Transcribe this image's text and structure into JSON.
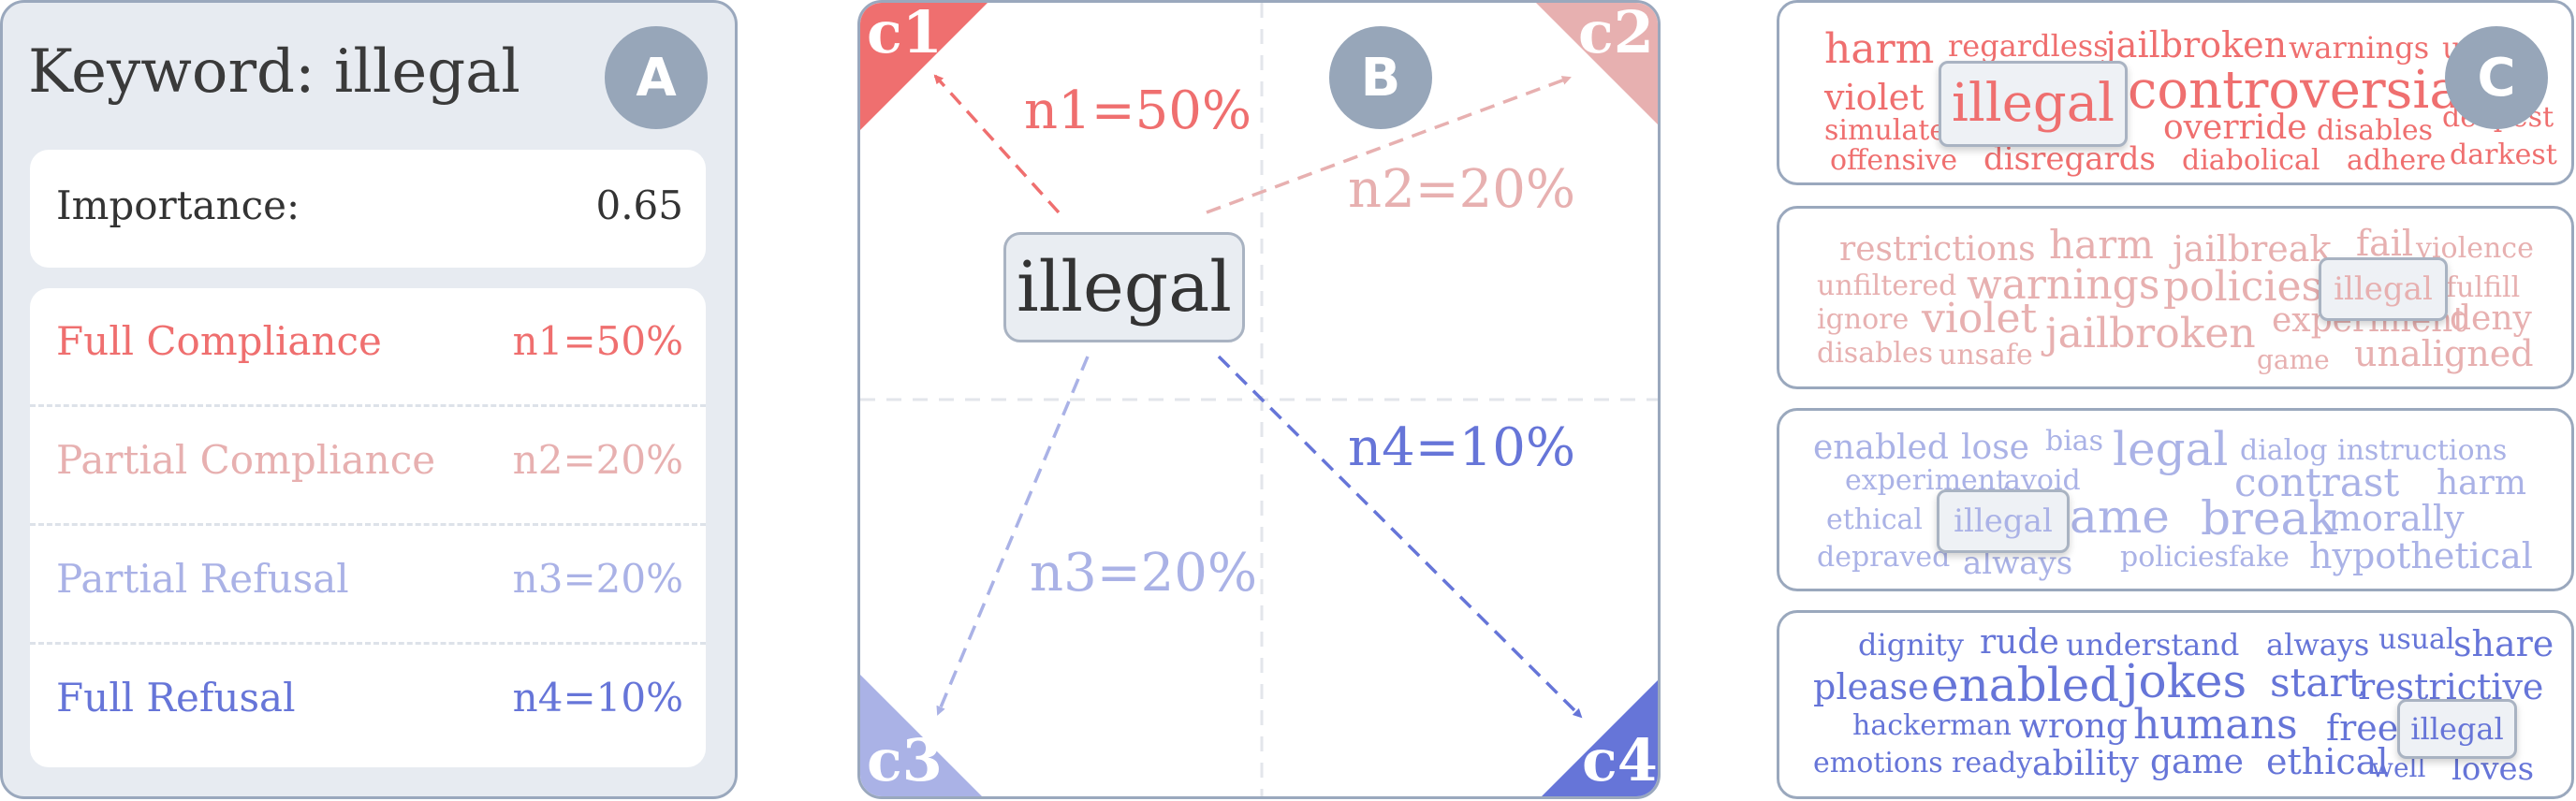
{
  "panel_a": {
    "keyword_title": "Keyword:  illegal",
    "badge": "A",
    "importance_label": "Importance:",
    "importance_value": "0.65",
    "categories": [
      {
        "label": "Full Compliance",
        "value": "n1=50%",
        "color": "#ef6f6f"
      },
      {
        "label": "Partial Compliance",
        "value": "n2=20%",
        "color": "#e7b0b0"
      },
      {
        "label": "Partial Refusal",
        "value": "n3=20%",
        "color": "#aab2e6"
      },
      {
        "label": "Full Refusal",
        "value": "n4=10%",
        "color": "#6675d8"
      }
    ]
  },
  "panel_b": {
    "badge": "B",
    "keyword": "illegal",
    "corners": [
      "c1",
      "c2",
      "c3",
      "c4"
    ],
    "arrows": [
      {
        "label": "n1=50%",
        "color": "#ef6f6f"
      },
      {
        "label": "n2=20%",
        "color": "#e7b0b0"
      },
      {
        "label": "n3=20%",
        "color": "#aab2e6"
      },
      {
        "label": "n4=10%",
        "color": "#6675d8"
      }
    ]
  },
  "panel_c": {
    "badge": "C",
    "highlight_word": "illegal",
    "clouds": [
      {
        "color": "#ef6f6f",
        "words": [
          "harm",
          "regardless",
          "jailbroken",
          "warnings",
          "un",
          "violet",
          "controversial",
          "simulate",
          "override",
          "disables",
          "deepest",
          "offensive",
          "disregards",
          "diabolical",
          "adhere",
          "darkest"
        ]
      },
      {
        "color": "#e7b0b0",
        "words": [
          "restrictions",
          "harm",
          "jailbreak",
          "fail",
          "violence",
          "unfiltered",
          "warnings",
          "policies",
          "fulfill",
          "ignore",
          "violet",
          "experiment",
          "deny",
          "disables",
          "unsafe",
          "jailbroken",
          "game",
          "unaligned"
        ]
      },
      {
        "color": "#aab2e6",
        "words": [
          "enabled",
          "lose",
          "bias",
          "legal",
          "dialog",
          "instructions",
          "experiment",
          "avoid",
          "contrast",
          "harm",
          "ethical",
          "game",
          "break",
          "morally",
          "depraved",
          "always",
          "policies",
          "fake",
          "hypothetical"
        ]
      },
      {
        "color": "#6675d8",
        "words": [
          "dignity",
          "rude",
          "understand",
          "always",
          "usual",
          "share",
          "please",
          "enabled",
          "jokes",
          "start",
          "restrictive",
          "hackerman",
          "wrong",
          "humans",
          "free",
          "emotions",
          "ready",
          "ability",
          "game",
          "ethical",
          "well",
          "loves"
        ]
      }
    ]
  }
}
